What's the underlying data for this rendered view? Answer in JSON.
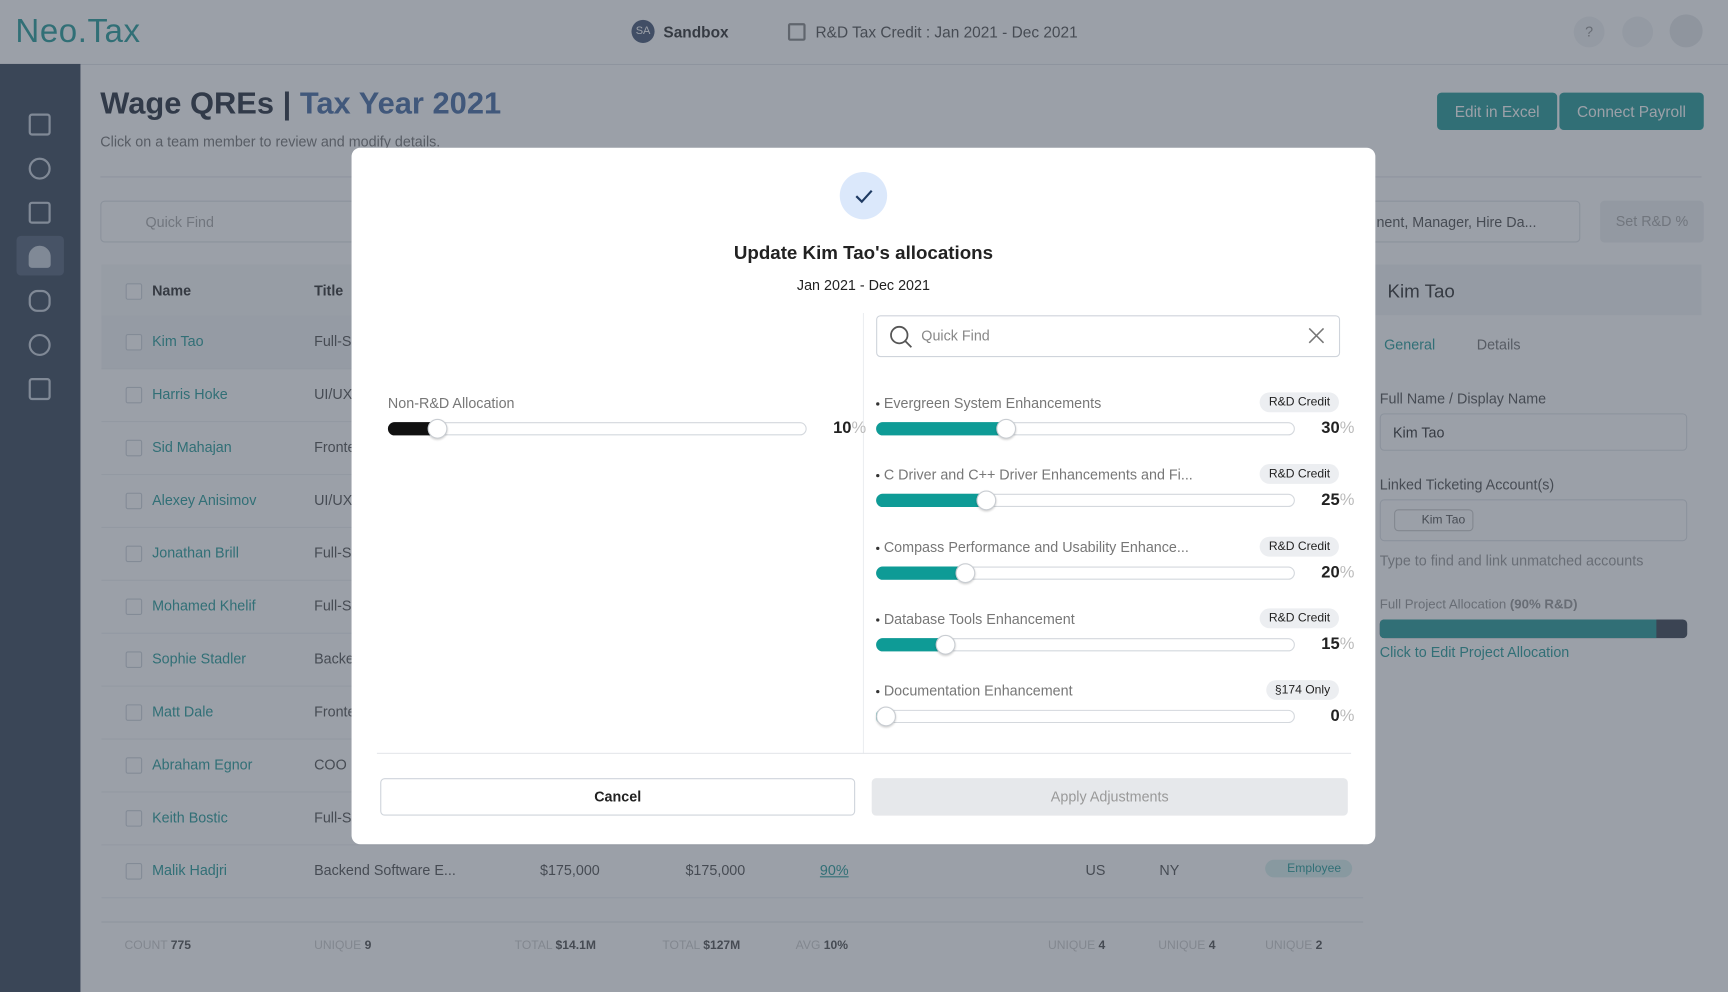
{
  "header": {
    "logo": "Neo.Tax",
    "workspace_initials": "SA",
    "workspace": "Sandbox",
    "period": "R&D Tax Credit : Jan 2021 - Dec 2021",
    "help": "?"
  },
  "page": {
    "title": "Wage QREs |",
    "title_year": "Tax Year 2021",
    "subtitle": "Click on a team member to review and modify details.",
    "buttons": [
      "Edit in Excel",
      "Connect Payroll"
    ],
    "search_placeholder": "Quick Find",
    "sort_select": "nent, Manager, Hire Da...",
    "set_rd": "Set R&D %"
  },
  "table": {
    "columns": [
      "Name",
      "Title"
    ],
    "rows": [
      [
        "Kim Tao",
        "Full-S"
      ],
      [
        "Harris Hoke",
        "UI/UX"
      ],
      [
        "Sid Mahajan",
        "Fronte"
      ],
      [
        "Alexey Anisimov",
        "UI/UX"
      ],
      [
        "Jonathan Brill",
        "Full-S"
      ],
      [
        "Mohamed Khelif",
        "Full-S"
      ],
      [
        "Sophie Stadler",
        "Backe"
      ],
      [
        "Matt Dale",
        "Fronte"
      ],
      [
        "Abraham Egnor",
        "COO"
      ],
      [
        "Keith Bostic",
        "Full-S"
      ]
    ],
    "last_row": {
      "name": "Malik Hadjri",
      "title": "Backend Software E...",
      "wage": "$175,000",
      "qre": "$175,000",
      "rd": "90%",
      "country": "US",
      "state": "NY",
      "type": "Employee"
    },
    "footer": [
      [
        "COUNT",
        "775"
      ],
      [
        "UNIQUE",
        "9"
      ],
      [
        "TOTAL",
        "$14.1M"
      ],
      [
        "TOTAL",
        "$127M"
      ],
      [
        "AVG",
        "10%"
      ],
      [
        "UNIQUE",
        "4"
      ],
      [
        "UNIQUE",
        "4"
      ],
      [
        "UNIQUE",
        "2"
      ]
    ]
  },
  "side_panel": {
    "name": "Kim Tao",
    "tabs": [
      "General",
      "Details"
    ],
    "full_name_label": "Full Name / Display Name",
    "full_name": "Kim Tao",
    "linked_label": "Linked Ticketing Account(s)",
    "linked_chip": "Kim Tao",
    "linked_hint": "Type to find and link unmatched accounts",
    "allocation_label": "Full Project Allocation",
    "allocation_note": "(90% R&D)",
    "allocation_value": 90,
    "allocation_link": "Click to Edit Project Allocation"
  },
  "modal": {
    "title": "Update Kim Tao's allocations",
    "period": "Jan 2021 - Dec 2021",
    "search_placeholder": "Quick Find",
    "percent_sign": "%",
    "non_rd": {
      "label": "Non-R&D Allocation",
      "value": 10
    },
    "projects": [
      {
        "name": "Evergreen System Enhancements",
        "tag": "R&D Credit",
        "value": 30
      },
      {
        "name": "C Driver and C++ Driver Enhancements and Fi...",
        "tag": "R&D Credit",
        "value": 25
      },
      {
        "name": "Compass Performance and Usability Enhance...",
        "tag": "R&D Credit",
        "value": 20
      },
      {
        "name": "Database Tools Enhancement",
        "tag": "R&D Credit",
        "value": 15
      },
      {
        "name": "Documentation Enhancement",
        "tag": "§174 Only",
        "value": 0
      }
    ],
    "cancel": "Cancel",
    "apply": "Apply Adjustments"
  }
}
